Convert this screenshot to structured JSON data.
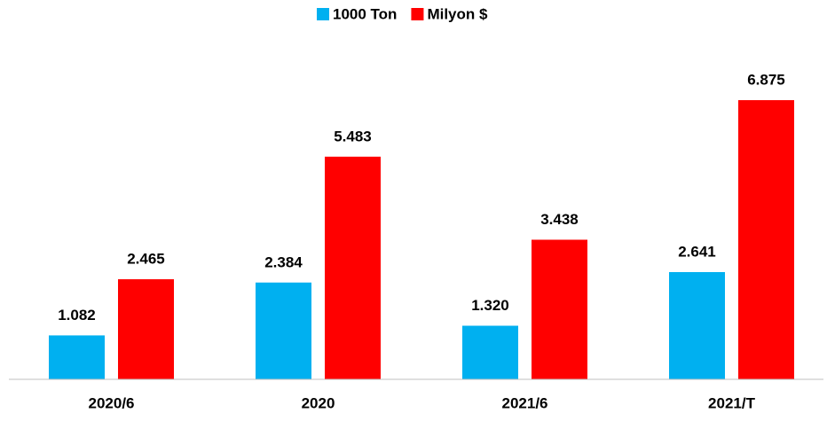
{
  "chart_data": {
    "type": "bar",
    "categories": [
      "2020/6",
      "2020",
      "2021/6",
      "2021/T"
    ],
    "series": [
      {
        "name": "1000 Ton",
        "color": "#00b0f0",
        "values": [
          1082,
          2384,
          1320,
          2641
        ],
        "value_labels": [
          "1.082",
          "2.384",
          "1.320",
          "2.641"
        ]
      },
      {
        "name": "Milyon $",
        "color": "#ff0000",
        "values": [
          2465,
          5483,
          3438,
          6875
        ],
        "value_labels": [
          "2.465",
          "5.483",
          "3.438",
          "6.875"
        ]
      }
    ],
    "legend": "top"
  }
}
